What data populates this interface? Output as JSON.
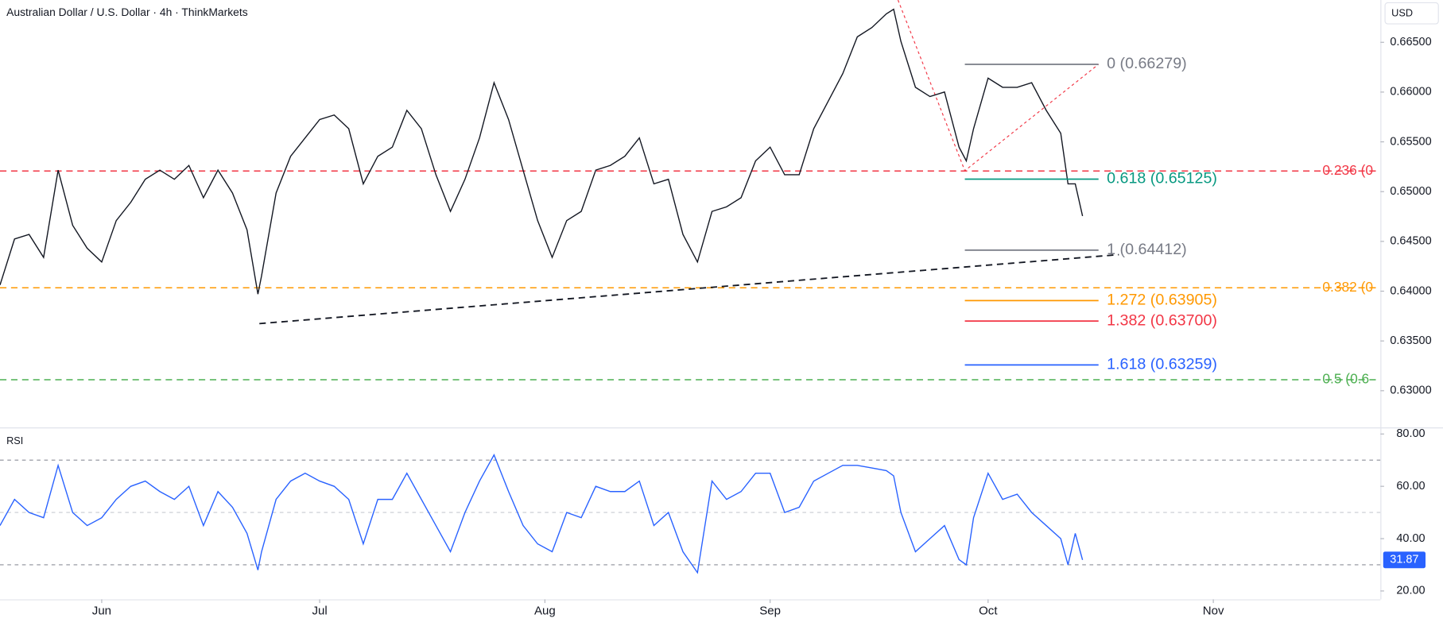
{
  "chart_data": [
    {
      "type": "line",
      "title": "Australian Dollar / U.S. Dollar · 4h · ThinkMarkets",
      "currency": "USD",
      "x": [
        0,
        2,
        4,
        6,
        8,
        10,
        12,
        14,
        16,
        18,
        20,
        22,
        24,
        26,
        28,
        30,
        32,
        34,
        35.5,
        36,
        38,
        40,
        42,
        44,
        46,
        48,
        50,
        52,
        54,
        56,
        58,
        60,
        62,
        64,
        66,
        68,
        70,
        72,
        74,
        76,
        78,
        80,
        82,
        84,
        86,
        88,
        90,
        92,
        94,
        96,
        98,
        100,
        102,
        104,
        106,
        108,
        110,
        112,
        114,
        116,
        118,
        120,
        122,
        123,
        124,
        126,
        128,
        130,
        132,
        133,
        134,
        136,
        138,
        140,
        142,
        144,
        146,
        147,
        148,
        149
      ],
      "xlim": [
        0,
        190
      ],
      "xticks": [
        {
          "value": 14,
          "label": "Jun"
        },
        {
          "value": 44,
          "label": "Jul"
        },
        {
          "value": 75,
          "label": "Aug"
        },
        {
          "value": 106,
          "label": "Sep"
        },
        {
          "value": 136,
          "label": "Oct"
        },
        {
          "value": 167,
          "label": "Nov"
        }
      ],
      "ylim": [
        0.62631,
        0.66925
      ],
      "yticks": [
        {
          "value": 0.63,
          "label": "0.63000"
        },
        {
          "value": 0.635,
          "label": "0.63500"
        },
        {
          "value": 0.64,
          "label": "0.64000"
        },
        {
          "value": 0.645,
          "label": "0.64500"
        },
        {
          "value": 0.65,
          "label": "0.65000"
        },
        {
          "value": 0.655,
          "label": "0.65500"
        },
        {
          "value": 0.66,
          "label": "0.66000"
        },
        {
          "value": 0.665,
          "label": "0.66500"
        }
      ],
      "series": [
        {
          "color": "#131722",
          "values": [
            0.64062,
            0.64524,
            0.6457,
            0.64339,
            0.65216,
            0.64662,
            0.64431,
            0.64293,
            0.64709,
            0.64893,
            0.65124,
            0.65216,
            0.65124,
            0.65263,
            0.64939,
            0.65216,
            0.64986,
            0.64616,
            0.6397,
            0.64154,
            0.64986,
            0.65355,
            0.6554,
            0.65724,
            0.6577,
            0.65632,
            0.65078,
            0.65355,
            0.65447,
            0.65817,
            0.65632,
            0.6517,
            0.64801,
            0.65124,
            0.6554,
            0.66094,
            0.65724,
            0.65216,
            0.64709,
            0.64339,
            0.64709,
            0.64801,
            0.65216,
            0.65263,
            0.65355,
            0.6554,
            0.65078,
            0.65124,
            0.6457,
            0.64293,
            0.64801,
            0.64847,
            0.64939,
            0.65309,
            0.65447,
            0.6517,
            0.6517,
            0.65632,
            0.65909,
            0.66186,
            0.66555,
            0.66648,
            0.66786,
            0.66832,
            0.66509,
            0.66048,
            0.65955,
            0.66001,
            0.65447,
            0.65309,
            0.65632,
            0.6614,
            0.66048,
            0.66048,
            0.66094,
            0.65817,
            0.65586,
            0.65078,
            0.65078,
            0.64755
          ]
        }
      ],
      "levels": [
        {
          "label": "0.236 (0",
          "value": 0.65207,
          "color": "#f23645"
        },
        {
          "label": "0.382 (0",
          "value": 0.64034,
          "color": "#ff9800"
        },
        {
          "label": "0.5 (0.6",
          "value": 0.6311,
          "color": "#4caf50"
        }
      ],
      "fib": {
        "x": [
          132.8,
          151.2
        ],
        "levels": [
          {
            "label": "0 (0.66279)",
            "value": 0.66279,
            "color": "#787b86"
          },
          {
            "label": "0.618 (0.65125)",
            "value": 0.65125,
            "color": "#089981"
          },
          {
            "label": "1 (0.64412)",
            "value": 0.64412,
            "color": "#787b86"
          },
          {
            "label": "1.272 (0.63905)",
            "value": 0.63905,
            "color": "#ff9800"
          },
          {
            "label": "1.382 (0.63700)",
            "value": 0.637,
            "color": "#f23645"
          },
          {
            "label": "1.618 (0.63259)",
            "value": 0.63259,
            "color": "#2962ff"
          }
        ]
      },
      "trendline": {
        "x": [
          35.7,
          154
        ],
        "values": [
          0.63674,
          0.64367
        ],
        "color": "#131722"
      },
      "zigzag": {
        "x": [
          123.6,
          132.8,
          151.2
        ],
        "values": [
          0.66925,
          0.6521,
          0.66279
        ],
        "color": "#f23645"
      }
    },
    {
      "type": "line",
      "title": "RSI",
      "x": [
        0,
        2,
        4,
        6,
        8,
        10,
        12,
        14,
        16,
        18,
        20,
        22,
        24,
        26,
        28,
        30,
        32,
        34,
        35.5,
        36,
        38,
        40,
        42,
        44,
        46,
        48,
        50,
        52,
        54,
        56,
        58,
        60,
        62,
        64,
        66,
        68,
        70,
        72,
        74,
        76,
        78,
        80,
        82,
        84,
        86,
        88,
        90,
        92,
        94,
        96,
        98,
        100,
        102,
        104,
        106,
        108,
        110,
        112,
        114,
        116,
        118,
        120,
        122,
        123,
        124,
        126,
        128,
        130,
        132,
        133,
        134,
        136,
        138,
        140,
        142,
        144,
        146,
        147,
        148,
        149
      ],
      "ylim": [
        16.8,
        82.5
      ],
      "yticks": [
        {
          "value": 20,
          "label": "20.00"
        },
        {
          "value": 40,
          "label": "40.00"
        },
        {
          "value": 60,
          "label": "60.00"
        },
        {
          "value": 80,
          "label": "80.00"
        }
      ],
      "bands": [
        70,
        50,
        30
      ],
      "series": [
        {
          "color": "#2962ff",
          "values": [
            45,
            55,
            50,
            48,
            68,
            50,
            45,
            48,
            55,
            60,
            62,
            58,
            55,
            60,
            45,
            58,
            52,
            42,
            28,
            35,
            55,
            62,
            65,
            62,
            60,
            55,
            38,
            55,
            55,
            65,
            55,
            45,
            35,
            50,
            62,
            72,
            58,
            45,
            38,
            35,
            50,
            48,
            60,
            58,
            58,
            62,
            45,
            50,
            35,
            27,
            62,
            55,
            58,
            65,
            65,
            50,
            52,
            62,
            65,
            68,
            68,
            67,
            66,
            64,
            50,
            35,
            40,
            45,
            32,
            30,
            48,
            65,
            55,
            57,
            50,
            45,
            40,
            30,
            42,
            31.87
          ]
        }
      ]
    }
  ]
}
